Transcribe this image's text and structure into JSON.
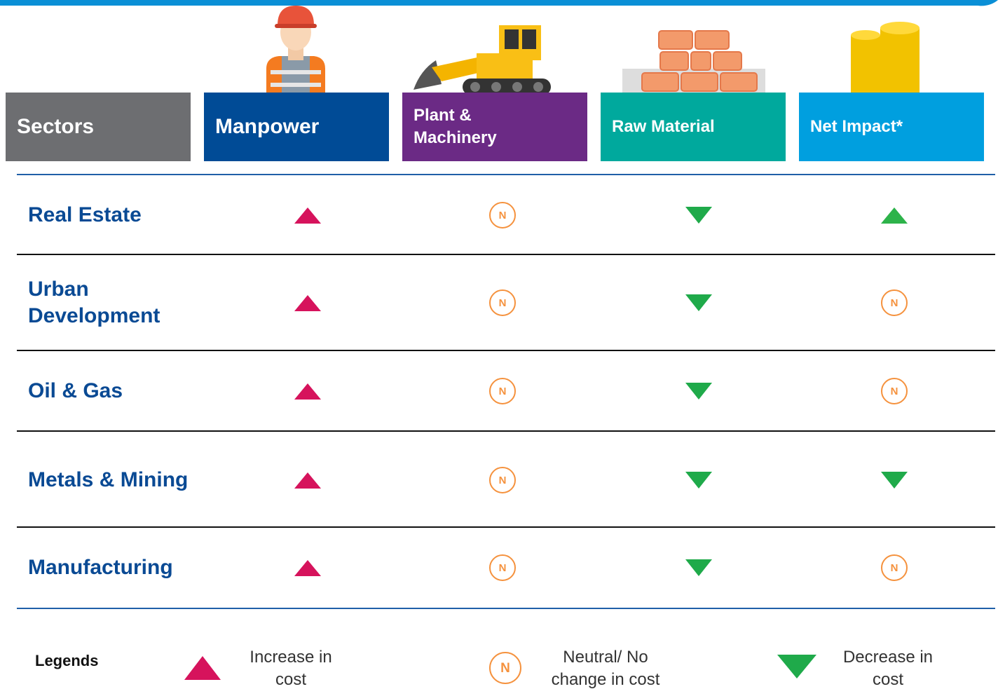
{
  "header": {
    "columns": [
      {
        "label": "Sectors",
        "color": "#6d6e71"
      },
      {
        "label": "Manpower",
        "color": "#004b96",
        "increase_color": "#d6135c"
      },
      {
        "label": "Plant & Machinery",
        "color": "#6b2a85",
        "increase_color": "#d6135c"
      },
      {
        "label": "Raw Material",
        "color": "#00a99d",
        "increase_color": "#d6135c"
      },
      {
        "label": "Net Impact*",
        "color": "#009fdf",
        "increase_color": "#2db34a"
      }
    ]
  },
  "table": {
    "rows": [
      {
        "sector": "Real Estate",
        "cells": [
          1,
          0,
          -1,
          1
        ]
      },
      {
        "sector": "Urban Development",
        "cells": [
          1,
          0,
          -1,
          0
        ]
      },
      {
        "sector": "Oil & Gas",
        "cells": [
          1,
          0,
          -1,
          0
        ]
      },
      {
        "sector": "Metals & Mining",
        "cells": [
          1,
          0,
          -1,
          -1
        ]
      },
      {
        "sector": "Manufacturing",
        "cells": [
          1,
          0,
          -1,
          0
        ]
      }
    ]
  },
  "legend": {
    "title": "Legends",
    "symbol": "N",
    "items": [
      {
        "value": 1,
        "label": "Increase in cost"
      },
      {
        "value": 0,
        "label": "Neutral/ No change in cost"
      },
      {
        "value": -1,
        "label": "Decrease in cost"
      }
    ]
  }
}
